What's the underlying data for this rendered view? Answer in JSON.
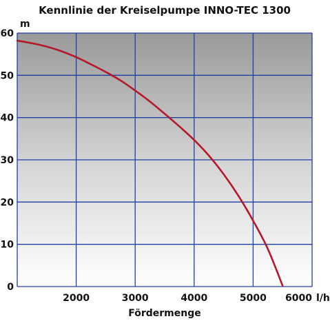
{
  "chart_data": {
    "type": "line",
    "title": "Kennlinie der Kreiselpumpe INNO-TEC 1300",
    "xlabel": "Fördermenge",
    "ylabel": "",
    "x_unit": "l/h",
    "y_unit": "m",
    "xlim": [
      1000,
      6000
    ],
    "ylim": [
      0,
      60
    ],
    "x_ticks": [
      "2000",
      "3000",
      "4000",
      "5000",
      "6000"
    ],
    "y_ticks": [
      "0",
      "10",
      "20",
      "30",
      "40",
      "50",
      "60"
    ],
    "grid": true,
    "series": [
      {
        "color": "#b5172b",
        "x": [
          1000,
          1250,
          1500,
          1750,
          2000,
          2250,
          2500,
          2750,
          3000,
          3250,
          3500,
          3750,
          4000,
          4250,
          4500,
          4750,
          5000,
          5250,
          5500
        ],
        "y": [
          58.2,
          57.6,
          56.8,
          55.7,
          54.3,
          52.6,
          50.8,
          48.8,
          46.4,
          43.8,
          40.9,
          37.9,
          34.7,
          31.0,
          26.6,
          21.5,
          15.6,
          8.9,
          0.2
        ]
      }
    ]
  },
  "colors": {
    "plot_bg_top": "#9a9a9a",
    "plot_bg_bottom": "#ffffff",
    "grid": "#1f3fa5",
    "curve": "#b5172b"
  }
}
